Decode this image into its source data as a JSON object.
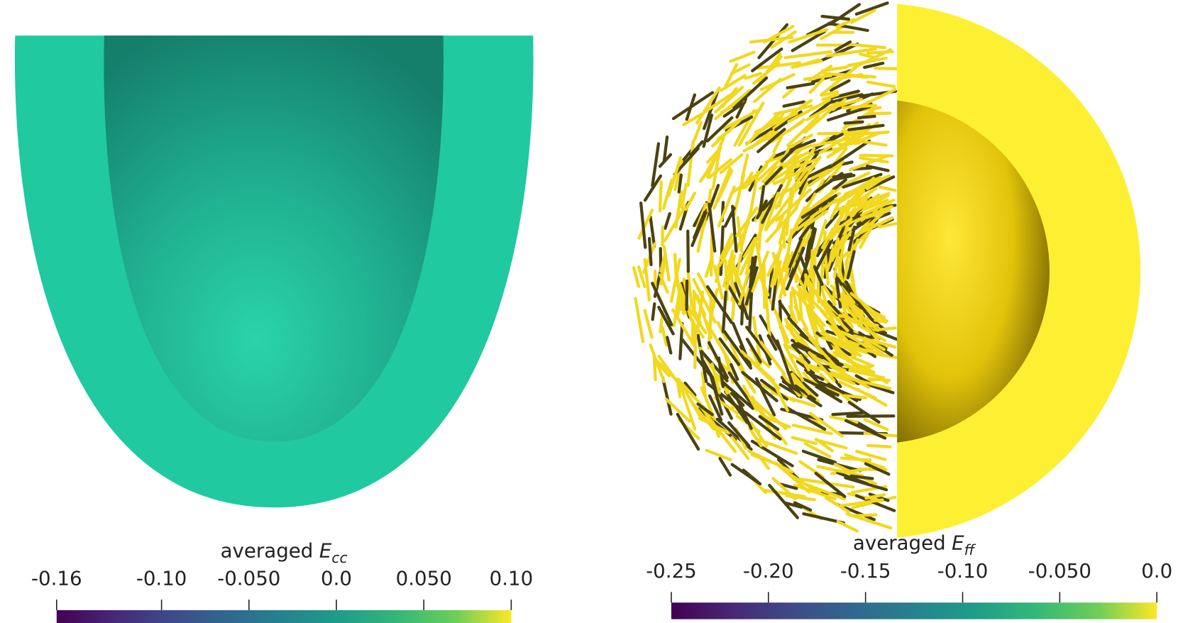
{
  "panels": [
    {
      "colorbar": {
        "label": {
          "text": "averaged",
          "symbol": "E",
          "subscript": "cc"
        },
        "lim": [
          -0.16,
          0.1
        ],
        "ticks": [
          -0.16,
          {
            "value": -0.1,
            "label": "-0.10"
          },
          {
            "value": -0.05,
            "label": "-0.050"
          },
          {
            "value": 0,
            "label": "0.0"
          },
          {
            "value": 0.05,
            "label": "0.050"
          },
          {
            "value": 0.1,
            "label": "0.10"
          }
        ]
      }
    },
    {
      "colorbar": {
        "label": {
          "text": "averaged",
          "symbol": "E",
          "subscript": "ff"
        },
        "lim": [
          -0.25,
          0
        ],
        "ticks": [
          -0.25,
          {
            "value": -0.2,
            "label": "-0.20"
          },
          {
            "value": -0.15,
            "label": "-0.15"
          },
          {
            "value": -0.1,
            "label": "-0.10"
          },
          {
            "value": -0.05,
            "label": "-0.050"
          },
          {
            "value": 0,
            "label": "0.0"
          }
        ]
      }
    }
  ]
}
